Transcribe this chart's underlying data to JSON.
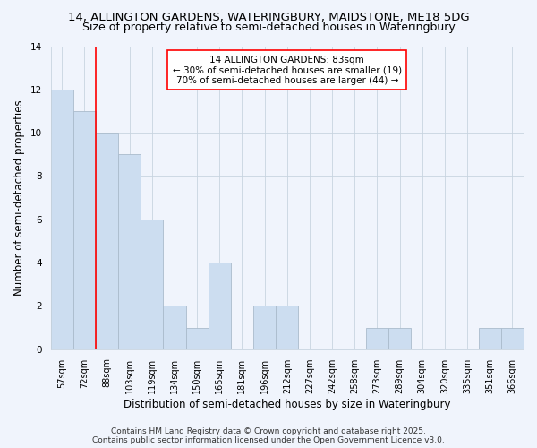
{
  "title_line1": "14, ALLINGTON GARDENS, WATERINGBURY, MAIDSTONE, ME18 5DG",
  "title_line2": "Size of property relative to semi-detached houses in Wateringbury",
  "categories": [
    "57sqm",
    "72sqm",
    "88sqm",
    "103sqm",
    "119sqm",
    "134sqm",
    "150sqm",
    "165sqm",
    "181sqm",
    "196sqm",
    "212sqm",
    "227sqm",
    "242sqm",
    "258sqm",
    "273sqm",
    "289sqm",
    "304sqm",
    "320sqm",
    "335sqm",
    "351sqm",
    "366sqm"
  ],
  "values": [
    12,
    11,
    10,
    9,
    6,
    2,
    1,
    4,
    0,
    2,
    2,
    0,
    0,
    0,
    1,
    1,
    0,
    0,
    0,
    1,
    1
  ],
  "bar_color": "#ccddf0",
  "bar_edge_color": "#aabbcc",
  "red_line_x": 1.5,
  "annotation_text": "14 ALLINGTON GARDENS: 83sqm\n← 30% of semi-detached houses are smaller (19)\n70% of semi-detached houses are larger (44) →",
  "ylabel": "Number of semi-detached properties",
  "xlabel": "Distribution of semi-detached houses by size in Wateringbury",
  "ylim": [
    0,
    14
  ],
  "yticks": [
    0,
    2,
    4,
    6,
    8,
    10,
    12,
    14
  ],
  "footer_text": "Contains HM Land Registry data © Crown copyright and database right 2025.\nContains public sector information licensed under the Open Government Licence v3.0.",
  "bg_color": "#f0f4fc",
  "plot_bg_color": "#f0f4fc",
  "grid_color": "#c8d4e0",
  "title1_fontsize": 9.5,
  "title2_fontsize": 9,
  "axis_label_fontsize": 8.5,
  "tick_fontsize": 7,
  "annotation_fontsize": 7.5,
  "footer_fontsize": 6.5
}
